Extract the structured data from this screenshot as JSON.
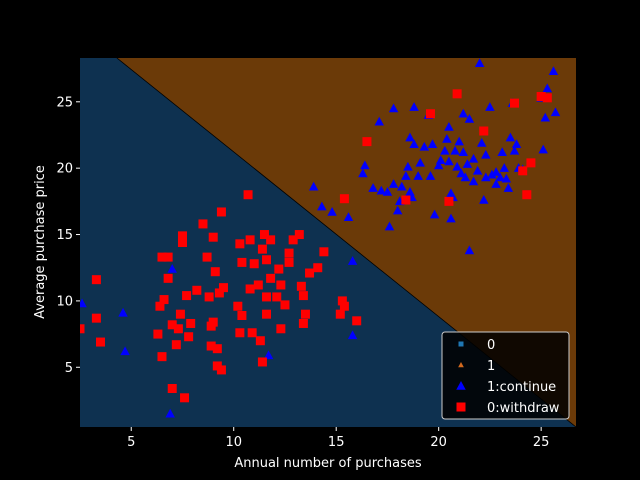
{
  "chart_data": {
    "type": "scatter",
    "title": "",
    "xlabel": "Annual number of purchases",
    "ylabel": "Average purchase price",
    "xlim": [
      2.5,
      26.7
    ],
    "ylim": [
      0.5,
      28.3
    ],
    "xticks": [
      5,
      10,
      15,
      20,
      25
    ],
    "yticks": [
      5,
      10,
      15,
      20,
      25
    ],
    "grid": false,
    "legend_placement": "lower-right",
    "background_color": "#000000",
    "decision_regions": {
      "boundary_line": [
        [
          4.3,
          28.3
        ],
        [
          26.7,
          0.5
        ]
      ],
      "region_0_color": "#0e3150",
      "region_1_color": "#6b3a08",
      "region_1_side": "upper-right"
    },
    "legend": [
      {
        "label": "0",
        "marker": "square",
        "color": "#1f77b4"
      },
      {
        "label": "1",
        "marker": "triangle",
        "color": "#d2691e"
      },
      {
        "label": "1:continue",
        "marker": "triangle",
        "color": "#0000ff"
      },
      {
        "label": "0:withdraw",
        "marker": "square",
        "color": "#ff0000"
      }
    ],
    "series": [
      {
        "name": "1:continue",
        "marker": "triangle",
        "color": "#0000ff",
        "points": [
          [
            2.6,
            9.8
          ],
          [
            4.6,
            9.1
          ],
          [
            4.7,
            6.2
          ],
          [
            7.0,
            12.4
          ],
          [
            6.9,
            1.5
          ],
          [
            11.7,
            5.9
          ],
          [
            13.9,
            18.6
          ],
          [
            14.3,
            17.1
          ],
          [
            14.8,
            16.7
          ],
          [
            15.6,
            16.3
          ],
          [
            15.8,
            13.0
          ],
          [
            15.8,
            7.4
          ],
          [
            16.3,
            19.6
          ],
          [
            16.4,
            20.2
          ],
          [
            16.8,
            18.5
          ],
          [
            17.1,
            23.5
          ],
          [
            17.2,
            18.3
          ],
          [
            17.5,
            18.2
          ],
          [
            17.6,
            15.6
          ],
          [
            17.8,
            18.8
          ],
          [
            17.8,
            24.5
          ],
          [
            18.0,
            16.8
          ],
          [
            18.1,
            17.5
          ],
          [
            18.2,
            18.6
          ],
          [
            18.4,
            19.4
          ],
          [
            18.5,
            20.1
          ],
          [
            18.6,
            22.3
          ],
          [
            18.6,
            18.2
          ],
          [
            18.7,
            17.8
          ],
          [
            18.8,
            21.8
          ],
          [
            18.8,
            24.6
          ],
          [
            19.0,
            19.4
          ],
          [
            19.1,
            20.4
          ],
          [
            19.3,
            21.6
          ],
          [
            19.5,
            24.0
          ],
          [
            19.6,
            19.4
          ],
          [
            19.7,
            21.8
          ],
          [
            19.8,
            16.5
          ],
          [
            20.0,
            20.2
          ],
          [
            20.1,
            20.6
          ],
          [
            20.3,
            21.3
          ],
          [
            20.4,
            22.2
          ],
          [
            20.5,
            23.1
          ],
          [
            20.5,
            20.5
          ],
          [
            20.6,
            18.1
          ],
          [
            20.6,
            16.2
          ],
          [
            20.7,
            17.8
          ],
          [
            20.8,
            21.3
          ],
          [
            20.9,
            20.1
          ],
          [
            21.0,
            22.0
          ],
          [
            21.1,
            19.6
          ],
          [
            21.2,
            21.2
          ],
          [
            21.2,
            24.1
          ],
          [
            21.3,
            19.3
          ],
          [
            21.4,
            20.3
          ],
          [
            21.5,
            23.7
          ],
          [
            21.5,
            13.8
          ],
          [
            21.7,
            19.0
          ],
          [
            21.7,
            20.7
          ],
          [
            21.9,
            19.8
          ],
          [
            22.0,
            27.9
          ],
          [
            22.1,
            21.9
          ],
          [
            22.2,
            17.6
          ],
          [
            22.3,
            19.3
          ],
          [
            22.3,
            21.0
          ],
          [
            22.5,
            24.6
          ],
          [
            22.6,
            19.5
          ],
          [
            22.8,
            19.7
          ],
          [
            22.8,
            18.8
          ],
          [
            23.0,
            19.3
          ],
          [
            23.1,
            21.2
          ],
          [
            23.2,
            20.0
          ],
          [
            23.3,
            19.2
          ],
          [
            23.4,
            18.5
          ],
          [
            23.5,
            22.3
          ],
          [
            23.6,
            24.9
          ],
          [
            23.7,
            21.3
          ],
          [
            23.8,
            21.8
          ],
          [
            23.9,
            20.0
          ],
          [
            24.1,
            19.9
          ],
          [
            25.0,
            25.3
          ],
          [
            25.1,
            21.4
          ],
          [
            25.2,
            23.8
          ],
          [
            25.3,
            26.0
          ],
          [
            25.6,
            27.3
          ],
          [
            25.7,
            24.2
          ]
        ]
      },
      {
        "name": "0:withdraw",
        "marker": "square",
        "color": "#ff0000",
        "points": [
          [
            2.5,
            7.9
          ],
          [
            3.3,
            11.6
          ],
          [
            3.3,
            8.7
          ],
          [
            3.5,
            6.9
          ],
          [
            6.3,
            7.5
          ],
          [
            6.4,
            9.6
          ],
          [
            6.5,
            5.8
          ],
          [
            6.5,
            13.3
          ],
          [
            6.6,
            10.1
          ],
          [
            6.8,
            13.3
          ],
          [
            6.8,
            11.7
          ],
          [
            7.0,
            8.2
          ],
          [
            7.0,
            3.4
          ],
          [
            7.2,
            6.7
          ],
          [
            7.3,
            7.9
          ],
          [
            7.4,
            9.0
          ],
          [
            7.5,
            14.9
          ],
          [
            7.5,
            14.4
          ],
          [
            7.6,
            2.7
          ],
          [
            7.7,
            10.4
          ],
          [
            7.8,
            7.3
          ],
          [
            7.9,
            8.3
          ],
          [
            8.2,
            10.8
          ],
          [
            8.5,
            15.8
          ],
          [
            8.7,
            13.3
          ],
          [
            8.8,
            10.3
          ],
          [
            8.9,
            8.1
          ],
          [
            8.9,
            6.6
          ],
          [
            9.0,
            14.8
          ],
          [
            9.0,
            8.4
          ],
          [
            9.1,
            12.2
          ],
          [
            9.2,
            5.1
          ],
          [
            9.2,
            6.4
          ],
          [
            9.3,
            10.6
          ],
          [
            9.4,
            16.7
          ],
          [
            9.4,
            4.8
          ],
          [
            9.5,
            11.0
          ],
          [
            10.2,
            9.6
          ],
          [
            10.3,
            14.3
          ],
          [
            10.3,
            7.6
          ],
          [
            10.4,
            8.9
          ],
          [
            10.4,
            12.9
          ],
          [
            10.7,
            18.0
          ],
          [
            10.8,
            14.6
          ],
          [
            10.8,
            10.9
          ],
          [
            10.9,
            7.6
          ],
          [
            11.0,
            12.8
          ],
          [
            11.2,
            11.2
          ],
          [
            11.3,
            7.0
          ],
          [
            11.4,
            13.9
          ],
          [
            11.4,
            5.4
          ],
          [
            11.5,
            15.0
          ],
          [
            11.6,
            10.3
          ],
          [
            11.6,
            9.0
          ],
          [
            11.6,
            13.1
          ],
          [
            11.8,
            14.6
          ],
          [
            11.8,
            11.7
          ],
          [
            12.1,
            10.3
          ],
          [
            12.2,
            12.4
          ],
          [
            12.3,
            11.2
          ],
          [
            12.3,
            7.9
          ],
          [
            12.5,
            9.7
          ],
          [
            12.7,
            12.9
          ],
          [
            12.7,
            13.6
          ],
          [
            12.9,
            14.6
          ],
          [
            13.2,
            15.0
          ],
          [
            13.3,
            11.1
          ],
          [
            13.4,
            10.4
          ],
          [
            13.4,
            8.3
          ],
          [
            13.5,
            9.0
          ],
          [
            13.7,
            12.1
          ],
          [
            14.1,
            12.5
          ],
          [
            14.4,
            13.7
          ],
          [
            15.2,
            9.0
          ],
          [
            15.3,
            10.0
          ],
          [
            15.4,
            9.6
          ],
          [
            15.4,
            17.7
          ],
          [
            16.0,
            8.5
          ],
          [
            16.5,
            22.0
          ],
          [
            18.4,
            17.6
          ],
          [
            19.6,
            24.1
          ],
          [
            20.5,
            17.5
          ],
          [
            20.9,
            25.6
          ],
          [
            22.2,
            22.8
          ],
          [
            23.7,
            24.9
          ],
          [
            24.1,
            19.8
          ],
          [
            24.3,
            18.0
          ],
          [
            24.5,
            20.4
          ],
          [
            25.0,
            25.4
          ],
          [
            25.3,
            25.3
          ]
        ]
      }
    ]
  }
}
